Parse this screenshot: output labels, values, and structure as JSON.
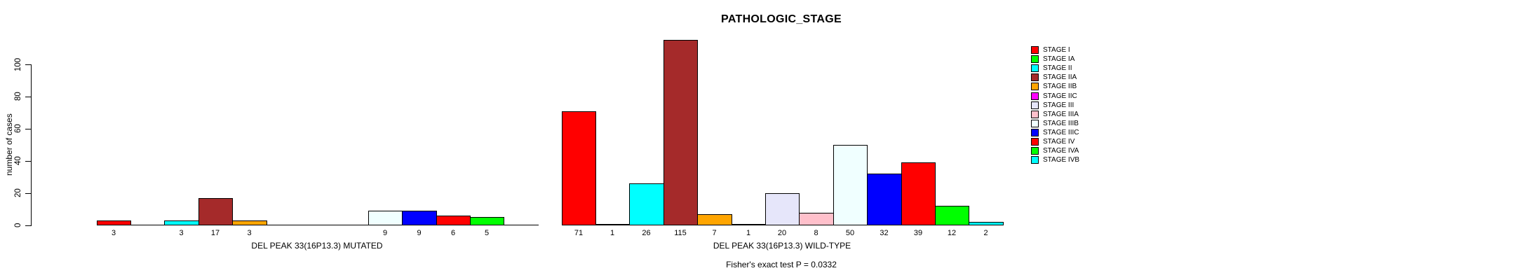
{
  "chart_data": {
    "type": "bar",
    "title": "PATHOLOGIC_STAGE",
    "ylabel": "number of cases",
    "xlabel": "",
    "ylim": [
      0,
      115
    ],
    "yticks": [
      0,
      20,
      40,
      60,
      80,
      100
    ],
    "grid": false,
    "legend_position": "right",
    "bar_value_labels": "shown under each nonzero bar",
    "categories": [
      "STAGE I",
      "STAGE IA",
      "STAGE II",
      "STAGE IIA",
      "STAGE IIB",
      "STAGE IIC",
      "STAGE III",
      "STAGE IIIA",
      "STAGE IIIB",
      "STAGE IIIC",
      "STAGE IV",
      "STAGE IVA",
      "STAGE IVB"
    ],
    "palette": [
      "#FF0000",
      "#00FF00",
      "#00FFFF",
      "#A52A2A",
      "#FFA500",
      "#FF00FF",
      "#E6E6FA",
      "#FFC0CB",
      "#F0FFFF",
      "#0000FF",
      "#FF0000",
      "#00FF00",
      "#00FFFF"
    ],
    "series": [
      {
        "name": "DEL PEAK 33(16P13.3) MUTATED",
        "values": [
          3,
          0,
          3,
          17,
          3,
          0,
          0,
          0,
          9,
          9,
          6,
          5,
          0
        ]
      },
      {
        "name": "DEL PEAK 33(16P13.3) WILD-TYPE",
        "values": [
          71,
          1,
          26,
          115,
          7,
          1,
          20,
          8,
          50,
          32,
          39,
          12,
          2
        ]
      }
    ],
    "footnote": "Fisher's exact test P = 0.0332",
    "axis_color": "#000000",
    "background_color": "#FFFFFF"
  }
}
